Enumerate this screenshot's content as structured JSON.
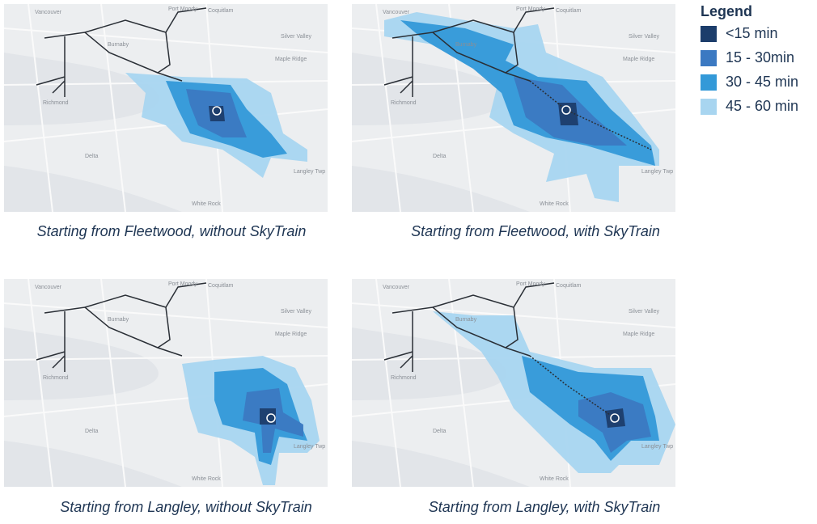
{
  "legend": {
    "title": "Legend",
    "items": [
      {
        "label": "<15 min",
        "color": "#1c3d6b"
      },
      {
        "label": "15 - 30min",
        "color": "#3b79c2"
      },
      {
        "label": "30 - 45 min",
        "color": "#3399d8"
      },
      {
        "label": "45 - 60 min",
        "color": "#a8d5f0"
      }
    ]
  },
  "maps": [
    {
      "caption": "Starting from Fleetwood, without SkyTrain"
    },
    {
      "caption": "Starting from Fleetwood, with SkyTrain"
    },
    {
      "caption": "Starting from Langley, without SkyTrain"
    },
    {
      "caption": "Starting from Langley, with SkyTrain"
    }
  ],
  "place_labels": [
    "Vancouver",
    "Burnaby",
    "Port Moody",
    "Coquitlam",
    "Silver Valley",
    "Maple Ridge",
    "Richmond",
    "Delta",
    "Langley Twp",
    "White Rock"
  ]
}
